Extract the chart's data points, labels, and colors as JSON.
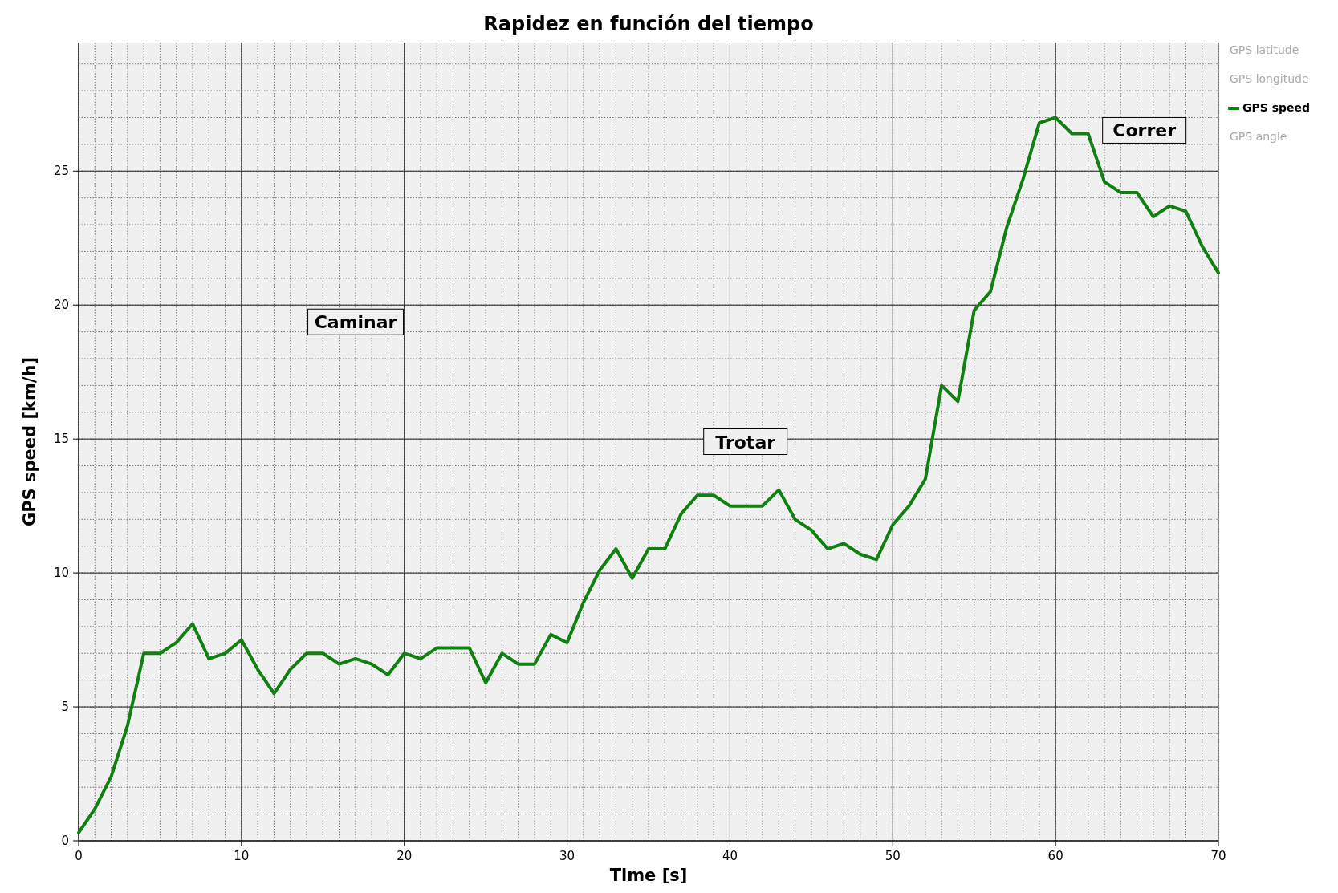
{
  "chart_data": {
    "type": "line",
    "title": "Rapidez en función del tiempo",
    "xlabel": "Time [s]",
    "ylabel": "GPS speed [km/h]",
    "x": [
      0,
      1,
      2,
      3,
      4,
      5,
      6,
      7,
      8,
      9,
      10,
      11,
      12,
      13,
      14,
      15,
      16,
      17,
      18,
      19,
      20,
      21,
      22,
      23,
      24,
      25,
      26,
      27,
      28,
      29,
      30,
      31,
      32,
      33,
      34,
      35,
      36,
      37,
      38,
      39,
      40,
      41,
      42,
      43,
      44,
      45,
      46,
      47,
      48,
      49,
      50,
      51,
      52,
      53,
      54,
      55,
      56,
      57,
      58,
      59,
      60,
      61,
      62,
      63,
      64,
      65,
      66,
      67,
      68,
      69,
      70
    ],
    "series": [
      {
        "name": "GPS latitude",
        "color": "#aaaaaa",
        "values": [
          null,
          null,
          null,
          null,
          null,
          null,
          null,
          null,
          null,
          null,
          null,
          null,
          null,
          null,
          null,
          null,
          null,
          null,
          null,
          null,
          null,
          null,
          null,
          null,
          null,
          null,
          null,
          null,
          null,
          null,
          null,
          null,
          null,
          null,
          null,
          null,
          null,
          null,
          null,
          null,
          null,
          null,
          null,
          null,
          null,
          null,
          null,
          null,
          null,
          null,
          null,
          null,
          null,
          null,
          null,
          null,
          null,
          null,
          null,
          null,
          null,
          null,
          null,
          null,
          null,
          null,
          null,
          null,
          null,
          null,
          null
        ]
      },
      {
        "name": "GPS longitude",
        "color": "#aaaaaa",
        "values": [
          null,
          null,
          null,
          null,
          null,
          null,
          null,
          null,
          null,
          null,
          null,
          null,
          null,
          null,
          null,
          null,
          null,
          null,
          null,
          null,
          null,
          null,
          null,
          null,
          null,
          null,
          null,
          null,
          null,
          null,
          null,
          null,
          null,
          null,
          null,
          null,
          null,
          null,
          null,
          null,
          null,
          null,
          null,
          null,
          null,
          null,
          null,
          null,
          null,
          null,
          null,
          null,
          null,
          null,
          null,
          null,
          null,
          null,
          null,
          null,
          null,
          null,
          null,
          null,
          null,
          null,
          null,
          null,
          null,
          null,
          null
        ]
      },
      {
        "name": "GPS speed",
        "color": "#108010",
        "values": [
          0.3,
          1.2,
          2.4,
          4.3,
          7.0,
          7.0,
          7.4,
          8.1,
          6.8,
          7.0,
          7.5,
          6.4,
          5.5,
          6.4,
          7.0,
          7.0,
          6.6,
          6.8,
          6.6,
          6.2,
          7.0,
          6.8,
          7.2,
          7.2,
          7.2,
          5.9,
          7.0,
          6.6,
          6.6,
          7.7,
          7.4,
          8.9,
          10.1,
          10.9,
          9.8,
          10.9,
          10.9,
          12.2,
          12.9,
          12.9,
          12.5,
          12.5,
          12.5,
          13.1,
          12.0,
          11.6,
          10.9,
          11.1,
          10.7,
          10.5,
          11.8,
          12.5,
          13.5,
          17.0,
          16.4,
          19.8,
          20.5,
          22.9,
          24.7,
          26.8,
          27.0,
          26.4,
          26.4,
          24.6,
          24.2,
          24.2,
          23.3,
          23.7,
          23.5,
          22.2,
          21.2
        ]
      },
      {
        "name": "GPS angle",
        "color": "#aaaaaa",
        "values": [
          null,
          null,
          null,
          null,
          null,
          null,
          null,
          null,
          null,
          null,
          null,
          null,
          null,
          null,
          null,
          null,
          null,
          null,
          null,
          null,
          null,
          null,
          null,
          null,
          null,
          null,
          null,
          null,
          null,
          null,
          null,
          null,
          null,
          null,
          null,
          null,
          null,
          null,
          null,
          null,
          null,
          null,
          null,
          null,
          null,
          null,
          null,
          null,
          null,
          null,
          null,
          null,
          null,
          null,
          null,
          null,
          null,
          null,
          null,
          null,
          null,
          null,
          null,
          null,
          null,
          null,
          null,
          null,
          null,
          null,
          null
        ]
      }
    ],
    "xlim": [
      0,
      70
    ],
    "xticks": [
      0,
      10,
      20,
      30,
      40,
      50,
      60,
      70
    ],
    "ylim": [
      0,
      29.8
    ],
    "yticks": [
      0,
      5,
      10,
      15,
      20,
      25
    ],
    "annotations": [
      "Caminar",
      "Trotar",
      "Correr"
    ],
    "grid": true,
    "legend": "top right",
    "line_style": "solid",
    "marker": "none"
  }
}
